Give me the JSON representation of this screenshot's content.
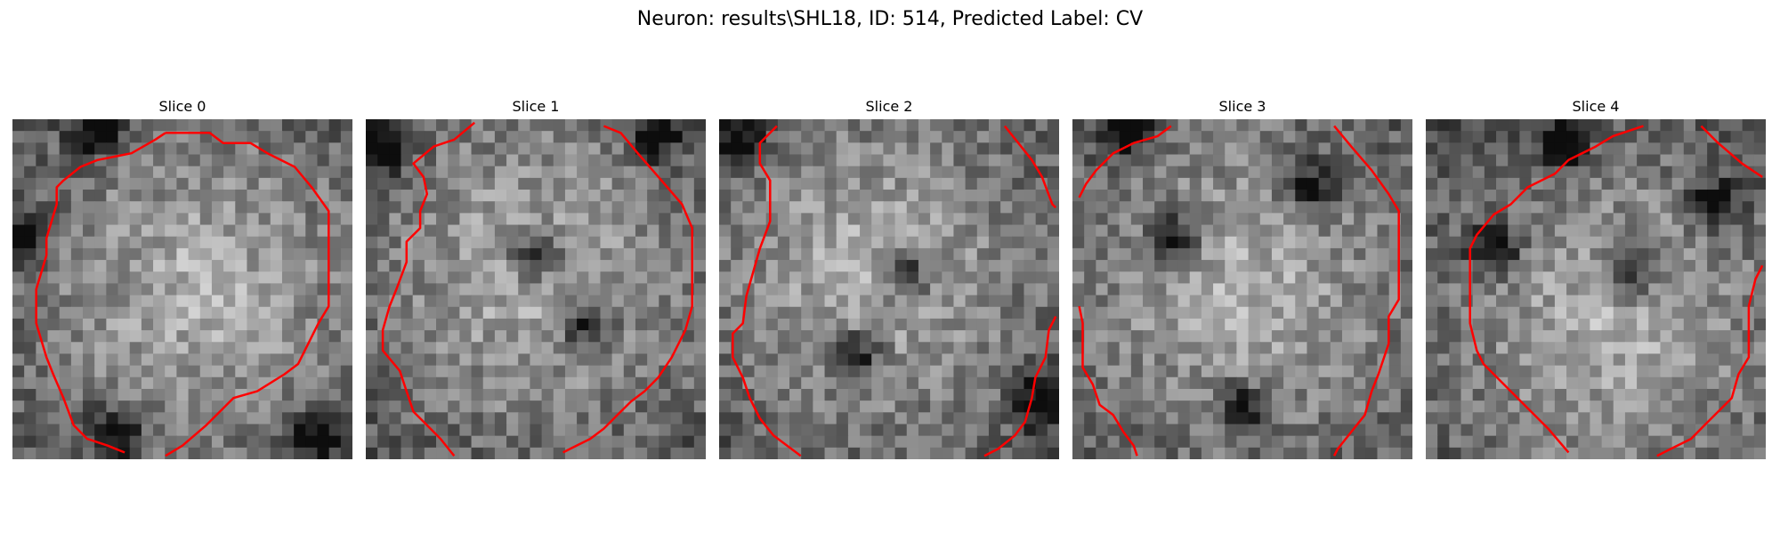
{
  "figure": {
    "title": "Neuron: results\\SHL18, ID: 514, Predicted Label: CV"
  },
  "panels": [
    {
      "title": "Slice 0",
      "seed": 11,
      "light_center": [
        0.55,
        0.5
      ],
      "dark_spots": [
        [
          0.25,
          0.03
        ],
        [
          0.9,
          0.93
        ],
        [
          0.3,
          0.92
        ],
        [
          0.03,
          0.35
        ]
      ],
      "contours": [
        [
          [
            0.45,
            0.04
          ],
          [
            0.58,
            0.04
          ],
          [
            0.62,
            0.07
          ],
          [
            0.7,
            0.07
          ],
          [
            0.75,
            0.1
          ],
          [
            0.83,
            0.14
          ],
          [
            0.88,
            0.2
          ],
          [
            0.93,
            0.27
          ],
          [
            0.93,
            0.55
          ],
          [
            0.9,
            0.6
          ],
          [
            0.86,
            0.68
          ],
          [
            0.84,
            0.72
          ],
          [
            0.8,
            0.75
          ],
          [
            0.72,
            0.8
          ],
          [
            0.65,
            0.82
          ],
          [
            0.62,
            0.85
          ],
          [
            0.57,
            0.9
          ],
          [
            0.5,
            0.96
          ],
          [
            0.45,
            0.99
          ]
        ],
        [
          [
            0.33,
            0.98
          ],
          [
            0.28,
            0.96
          ],
          [
            0.22,
            0.94
          ],
          [
            0.18,
            0.9
          ],
          [
            0.15,
            0.82
          ],
          [
            0.12,
            0.75
          ],
          [
            0.1,
            0.7
          ],
          [
            0.07,
            0.6
          ],
          [
            0.07,
            0.5
          ],
          [
            0.1,
            0.4
          ],
          [
            0.1,
            0.35
          ],
          [
            0.13,
            0.25
          ],
          [
            0.13,
            0.2
          ],
          [
            0.15,
            0.18
          ],
          [
            0.2,
            0.14
          ],
          [
            0.25,
            0.12
          ],
          [
            0.35,
            0.1
          ],
          [
            0.42,
            0.06
          ],
          [
            0.45,
            0.04
          ]
        ]
      ]
    },
    {
      "title": "Slice 1",
      "seed": 23,
      "light_center": [
        0.5,
        0.45
      ],
      "dark_spots": [
        [
          0.05,
          0.08
        ],
        [
          0.5,
          0.4
        ],
        [
          0.65,
          0.6
        ],
        [
          0.85,
          0.05
        ]
      ],
      "contours": [
        [
          [
            0.32,
            0.01
          ],
          [
            0.26,
            0.06
          ],
          [
            0.2,
            0.08
          ],
          [
            0.14,
            0.13
          ],
          [
            0.17,
            0.17
          ],
          [
            0.18,
            0.22
          ],
          [
            0.16,
            0.27
          ],
          [
            0.16,
            0.32
          ],
          [
            0.12,
            0.36
          ],
          [
            0.12,
            0.42
          ],
          [
            0.09,
            0.5
          ],
          [
            0.07,
            0.55
          ],
          [
            0.05,
            0.62
          ],
          [
            0.05,
            0.68
          ],
          [
            0.1,
            0.74
          ],
          [
            0.12,
            0.8
          ],
          [
            0.14,
            0.86
          ],
          [
            0.18,
            0.9
          ],
          [
            0.22,
            0.94
          ],
          [
            0.26,
            0.99
          ]
        ],
        [
          [
            0.7,
            0.02
          ],
          [
            0.75,
            0.04
          ],
          [
            0.8,
            0.1
          ],
          [
            0.87,
            0.18
          ],
          [
            0.93,
            0.25
          ],
          [
            0.96,
            0.32
          ],
          [
            0.96,
            0.55
          ],
          [
            0.94,
            0.62
          ],
          [
            0.9,
            0.7
          ],
          [
            0.86,
            0.76
          ],
          [
            0.82,
            0.8
          ],
          [
            0.78,
            0.83
          ],
          [
            0.74,
            0.87
          ],
          [
            0.7,
            0.91
          ],
          [
            0.66,
            0.94
          ],
          [
            0.6,
            0.97
          ],
          [
            0.58,
            0.98
          ]
        ]
      ]
    },
    {
      "title": "Slice 2",
      "seed": 37,
      "light_center": [
        0.45,
        0.45
      ],
      "dark_spots": [
        [
          0.05,
          0.07
        ],
        [
          0.55,
          0.45
        ],
        [
          0.4,
          0.7
        ],
        [
          0.95,
          0.82
        ]
      ],
      "contours": [
        [
          [
            0.17,
            0.02
          ],
          [
            0.12,
            0.07
          ],
          [
            0.12,
            0.13
          ],
          [
            0.15,
            0.18
          ],
          [
            0.15,
            0.3
          ],
          [
            0.12,
            0.38
          ],
          [
            0.1,
            0.45
          ],
          [
            0.08,
            0.52
          ],
          [
            0.07,
            0.6
          ],
          [
            0.04,
            0.63
          ],
          [
            0.04,
            0.7
          ],
          [
            0.07,
            0.76
          ],
          [
            0.09,
            0.82
          ],
          [
            0.12,
            0.88
          ],
          [
            0.16,
            0.93
          ],
          [
            0.2,
            0.96
          ],
          [
            0.24,
            0.99
          ]
        ],
        [
          [
            0.84,
            0.02
          ],
          [
            0.88,
            0.07
          ],
          [
            0.92,
            0.12
          ],
          [
            0.95,
            0.17
          ],
          [
            0.98,
            0.25
          ],
          [
            0.99,
            0.26
          ]
        ],
        [
          [
            0.99,
            0.58
          ],
          [
            0.97,
            0.62
          ],
          [
            0.96,
            0.7
          ],
          [
            0.93,
            0.76
          ],
          [
            0.92,
            0.82
          ],
          [
            0.9,
            0.89
          ],
          [
            0.87,
            0.93
          ],
          [
            0.82,
            0.97
          ],
          [
            0.78,
            0.99
          ]
        ]
      ]
    },
    {
      "title": "Slice 3",
      "seed": 41,
      "light_center": [
        0.5,
        0.5
      ],
      "dark_spots": [
        [
          0.15,
          0.03
        ],
        [
          0.3,
          0.35
        ],
        [
          0.7,
          0.2
        ],
        [
          0.5,
          0.85
        ]
      ],
      "contours": [
        [
          [
            0.29,
            0.02
          ],
          [
            0.25,
            0.05
          ],
          [
            0.18,
            0.07
          ],
          [
            0.12,
            0.1
          ],
          [
            0.07,
            0.15
          ],
          [
            0.04,
            0.19
          ],
          [
            0.02,
            0.23
          ]
        ],
        [
          [
            0.77,
            0.02
          ],
          [
            0.82,
            0.08
          ],
          [
            0.88,
            0.15
          ],
          [
            0.93,
            0.22
          ],
          [
            0.96,
            0.27
          ],
          [
            0.96,
            0.53
          ],
          [
            0.93,
            0.58
          ],
          [
            0.93,
            0.66
          ],
          [
            0.9,
            0.75
          ],
          [
            0.88,
            0.8
          ],
          [
            0.86,
            0.87
          ],
          [
            0.82,
            0.92
          ],
          [
            0.78,
            0.97
          ],
          [
            0.77,
            0.99
          ]
        ],
        [
          [
            0.02,
            0.55
          ],
          [
            0.03,
            0.6
          ],
          [
            0.03,
            0.73
          ],
          [
            0.06,
            0.78
          ],
          [
            0.08,
            0.84
          ],
          [
            0.12,
            0.87
          ],
          [
            0.15,
            0.92
          ],
          [
            0.18,
            0.96
          ],
          [
            0.19,
            0.99
          ]
        ]
      ]
    },
    {
      "title": "Slice 4",
      "seed": 53,
      "light_center": [
        0.55,
        0.6
      ],
      "dark_spots": [
        [
          0.2,
          0.38
        ],
        [
          0.6,
          0.45
        ],
        [
          0.85,
          0.25
        ],
        [
          0.4,
          0.08
        ]
      ],
      "contours": [
        [
          [
            0.64,
            0.02
          ],
          [
            0.55,
            0.05
          ],
          [
            0.5,
            0.08
          ],
          [
            0.42,
            0.12
          ],
          [
            0.38,
            0.16
          ],
          [
            0.3,
            0.2
          ],
          [
            0.25,
            0.25
          ],
          [
            0.2,
            0.28
          ],
          [
            0.15,
            0.34
          ],
          [
            0.13,
            0.38
          ],
          [
            0.13,
            0.6
          ],
          [
            0.15,
            0.68
          ],
          [
            0.17,
            0.72
          ],
          [
            0.22,
            0.77
          ],
          [
            0.3,
            0.85
          ],
          [
            0.36,
            0.91
          ],
          [
            0.42,
            0.98
          ]
        ],
        [
          [
            0.81,
            0.02
          ],
          [
            0.86,
            0.07
          ],
          [
            0.93,
            0.13
          ],
          [
            0.99,
            0.17
          ]
        ],
        [
          [
            0.99,
            0.43
          ],
          [
            0.97,
            0.47
          ],
          [
            0.95,
            0.55
          ],
          [
            0.95,
            0.7
          ],
          [
            0.92,
            0.75
          ],
          [
            0.9,
            0.82
          ],
          [
            0.86,
            0.86
          ],
          [
            0.82,
            0.9
          ],
          [
            0.78,
            0.94
          ],
          [
            0.72,
            0.97
          ],
          [
            0.68,
            0.99
          ]
        ]
      ]
    }
  ]
}
